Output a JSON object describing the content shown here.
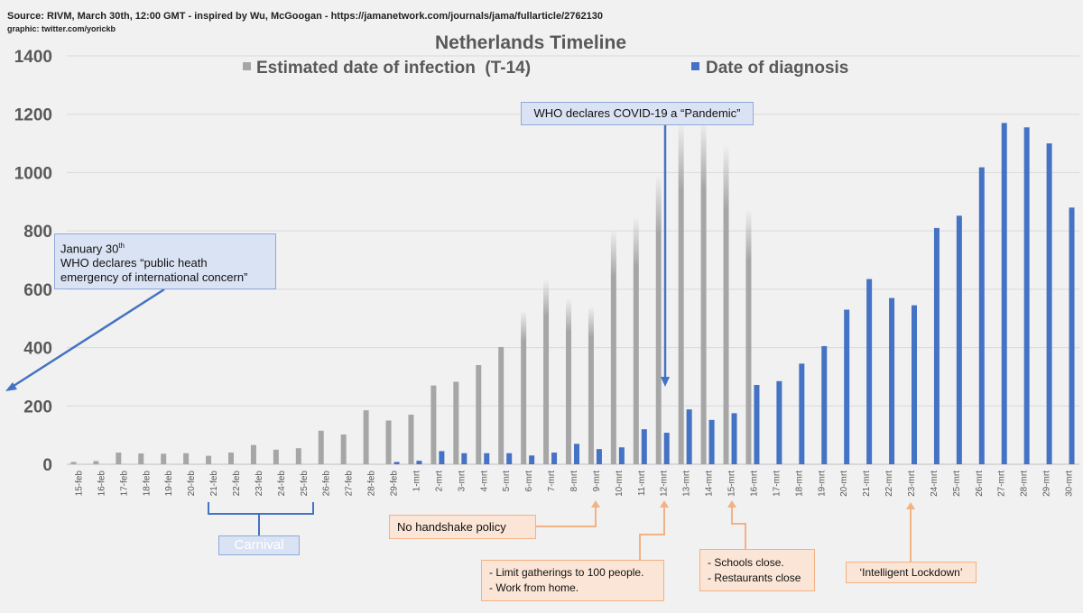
{
  "source_line1": "Source: RIVM, March 30th, 12:00 GMT  -  inspired by Wu, McGoogan - https://jamanetwork.com/journals/jama/fullarticle/2762130",
  "source_line2": "graphic: twitter.com/yorickb",
  "chart_data": {
    "type": "bar",
    "title": "Netherlands Timeline",
    "categories": [
      "15-feb",
      "16-feb",
      "17-feb",
      "18-feb",
      "19-feb",
      "20-feb",
      "21-feb",
      "22-feb",
      "23-feb",
      "24-feb",
      "25-feb",
      "26-feb",
      "27-feb",
      "28-feb",
      "29-feb",
      "1-mrt",
      "2-mrt",
      "3-mrt",
      "4-mrt",
      "5-mrt",
      "6-mrt",
      "7-mrt",
      "8-mrt",
      "9-mrt",
      "10-mrt",
      "11-mrt",
      "12-mrt",
      "13-mrt",
      "14-mrt",
      "15-mrt",
      "16-mrt",
      "17-mrt",
      "18-mrt",
      "19-mrt",
      "20-mrt",
      "21-mrt",
      "22-mrt",
      "23-mrt",
      "24-mrt",
      "25-mrt",
      "26-mrt",
      "27-mrt",
      "28-mrt",
      "29-mrt",
      "30-mrt"
    ],
    "series": [
      {
        "name": "Estimated date of infection  (T-14)",
        "color": "#a6a6a6",
        "values": [
          8,
          11,
          40,
          37,
          36,
          38,
          29,
          40,
          66,
          50,
          55,
          115,
          102,
          185,
          150,
          170,
          270,
          283,
          340,
          402,
          527,
          635,
          568,
          542,
          805,
          848,
          990,
          1175,
          1180,
          1095,
          875,
          0,
          0,
          0,
          0,
          0,
          0,
          0,
          0,
          0,
          0,
          0,
          0,
          0,
          0
        ]
      },
      {
        "name": "Date of diagnosis",
        "color": "#4472c4",
        "values": [
          0,
          0,
          0,
          0,
          0,
          0,
          0,
          0,
          0,
          0,
          0,
          0,
          0,
          0,
          8,
          12,
          45,
          38,
          38,
          38,
          30,
          40,
          70,
          52,
          58,
          120,
          108,
          188,
          152,
          175,
          272,
          285,
          345,
          405,
          530,
          635,
          570,
          545,
          810,
          852,
          1018,
          1170,
          1155,
          1100,
          880
        ]
      }
    ],
    "ylim": [
      0,
      1400
    ],
    "yticks": [
      0,
      200,
      400,
      600,
      800,
      1000,
      1200,
      1400
    ],
    "xlabel": "",
    "ylabel": "",
    "grid": true,
    "legend": "top"
  },
  "annotations": {
    "january": {
      "line1": "January 30",
      "sup": "th",
      "line2": "WHO declares “public heath",
      "line3": "emergency of international concern”"
    },
    "pandemic": "WHO declares COVID-19 a “Pandemic”",
    "carnival": "Carnival",
    "handshake": "No handshake policy",
    "gatherings": [
      "- Limit gatherings to 100 people.",
      "- Work from home."
    ],
    "schools": [
      "- Schools close.",
      "- Restaurants close"
    ],
    "lockdown": "‘Intelligent Lockdown’"
  }
}
